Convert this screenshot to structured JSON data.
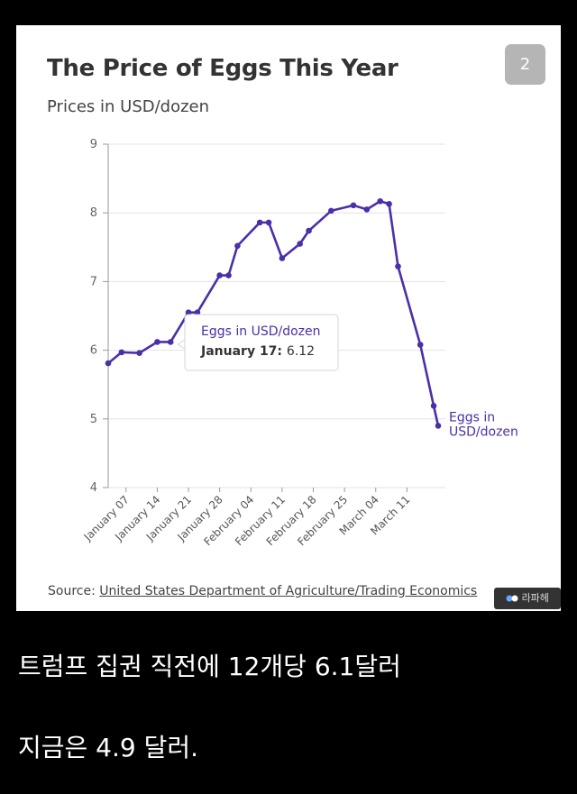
{
  "card": {
    "page_badge": "2",
    "source_prefix": "Source: ",
    "source_link": "United States Department of Agriculture/Trading Economics",
    "watermark": "라파헤"
  },
  "captions": {
    "line1": "트럼프 집권 직전에 12개당 6.1달러",
    "line2": "지금은 4.9 달러."
  },
  "colors": {
    "line": "#4b2fa8",
    "grid": "#e3e3e3",
    "axis": "#666666"
  },
  "chart_data": {
    "type": "line",
    "title": "The Price of Eggs This Year",
    "subtitle": "Prices in USD/dozen",
    "xlabel": "",
    "ylabel": "",
    "ylim": [
      4,
      9
    ],
    "yticks": [
      4,
      5,
      6,
      7,
      8,
      9
    ],
    "grid": true,
    "x_tick_labels": [
      "January 07",
      "January 14",
      "January 21",
      "January 28",
      "February 04",
      "February 11",
      "February 18",
      "February 25",
      "March 04",
      "March 11"
    ],
    "series": [
      {
        "name": "Eggs in USD/dozen",
        "values": [
          {
            "x": "January 03",
            "y": 5.81
          },
          {
            "x": "January 06",
            "y": 5.97
          },
          {
            "x": "January 10",
            "y": 5.96
          },
          {
            "x": "January 14",
            "y": 6.12
          },
          {
            "x": "January 17",
            "y": 6.12
          },
          {
            "x": "January 21",
            "y": 6.55
          },
          {
            "x": "January 23",
            "y": 6.55
          },
          {
            "x": "January 28",
            "y": 7.09
          },
          {
            "x": "January 30",
            "y": 7.09
          },
          {
            "x": "February 01",
            "y": 7.52
          },
          {
            "x": "February 06",
            "y": 7.86
          },
          {
            "x": "February 08",
            "y": 7.86
          },
          {
            "x": "February 11",
            "y": 7.34
          },
          {
            "x": "February 15",
            "y": 7.55
          },
          {
            "x": "February 17",
            "y": 7.74
          },
          {
            "x": "February 22",
            "y": 8.03
          },
          {
            "x": "February 27",
            "y": 8.11
          },
          {
            "x": "March 02",
            "y": 8.05
          },
          {
            "x": "March 05",
            "y": 8.17
          },
          {
            "x": "March 07",
            "y": 8.13
          },
          {
            "x": "March 09",
            "y": 7.22
          },
          {
            "x": "March 14",
            "y": 6.08
          },
          {
            "x": "March 17",
            "y": 5.19
          },
          {
            "x": "March 18",
            "y": 4.9
          }
        ]
      }
    ],
    "tooltip": {
      "series": "Eggs in USD/dozen",
      "date": "January 17:",
      "value": "6.12"
    },
    "end_label": [
      "Eggs in",
      "USD/dozen"
    ]
  }
}
